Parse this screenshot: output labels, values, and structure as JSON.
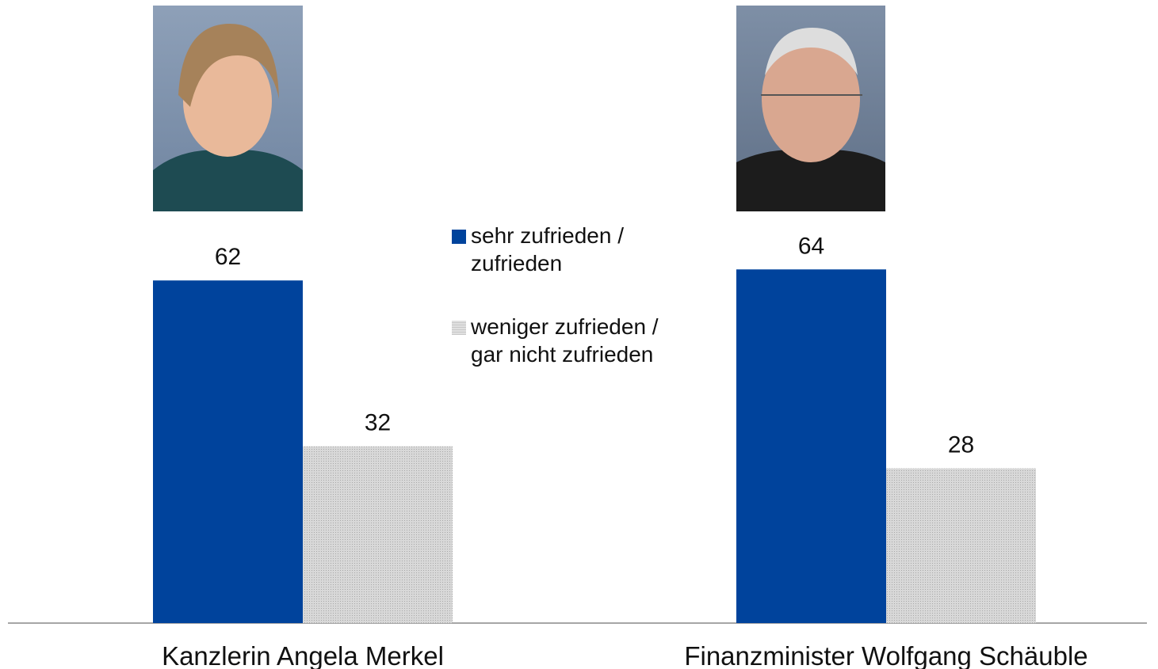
{
  "chart_data": {
    "type": "bar",
    "categories": [
      "Kanzlerin Angela Merkel",
      "Finanzminister Wolfgang Schäuble"
    ],
    "series": [
      {
        "name": "sehr zufrieden / zufrieden",
        "color": "#00439c",
        "values": [
          62,
          64
        ]
      },
      {
        "name": "weniger zufrieden / gar nicht zufrieden",
        "color": "#c8c8c8",
        "values": [
          32,
          28
        ]
      }
    ]
  }
}
